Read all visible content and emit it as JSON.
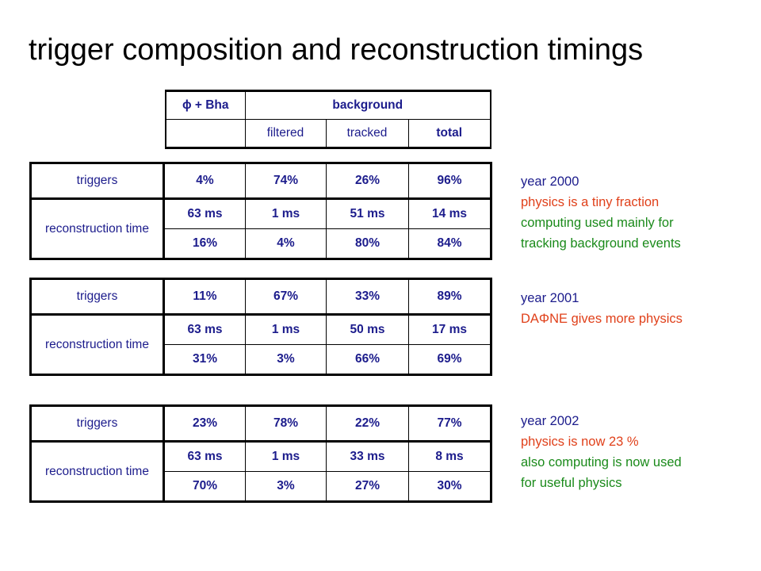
{
  "page": {
    "title": "trigger composition and reconstruction timings"
  },
  "header_table": {
    "col1": "ϕ + Bha",
    "group": "background",
    "sub": [
      "filtered",
      "tracked",
      "total"
    ]
  },
  "blocks": [
    {
      "triggers_label": "triggers",
      "reco_label": "reconstruction time",
      "triggers": [
        "4%",
        "74%",
        "26%",
        "96%"
      ],
      "reco_time": [
        "63 ms",
        "1 ms",
        "51 ms",
        "14 ms"
      ],
      "reco_frac": [
        "16%",
        "4%",
        "80%",
        "84%"
      ],
      "note": {
        "year": "year 2000",
        "line1": "physics is a tiny fraction",
        "line2": "computing used mainly for",
        "line3": "tracking background events"
      }
    },
    {
      "triggers_label": "triggers",
      "reco_label": "reconstruction time",
      "triggers": [
        "11%",
        "67%",
        "33%",
        "89%"
      ],
      "reco_time": [
        "63 ms",
        "1 ms",
        "50 ms",
        "17 ms"
      ],
      "reco_frac": [
        "31%",
        "3%",
        "66%",
        "69%"
      ],
      "note": {
        "year": "year 2001",
        "line1": "DAΦNE gives more physics"
      }
    },
    {
      "triggers_label": "triggers",
      "reco_label": "reconstruction time",
      "triggers": [
        "23%",
        "78%",
        "22%",
        "77%"
      ],
      "reco_time": [
        "63 ms",
        "1 ms",
        "33 ms",
        "8 ms"
      ],
      "reco_frac": [
        "70%",
        "3%",
        "27%",
        "30%"
      ],
      "note": {
        "year": "year 2002",
        "line1": "physics is now 23 %",
        "line2": "also computing is now used",
        "line3": "for useful physics"
      }
    }
  ],
  "colors": {
    "table_text": "#1c1c8c",
    "red_note": "#e0401a",
    "green_note": "#1a8a1a"
  }
}
